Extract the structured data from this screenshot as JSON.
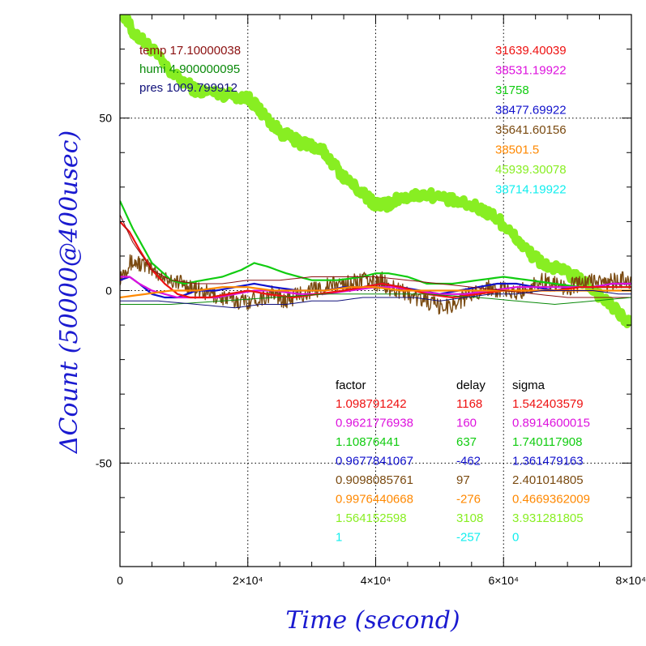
{
  "chart_data": {
    "type": "line",
    "title": "",
    "xlabel": "Time (second)",
    "ylabel": "ΔCount (50000@400usec)",
    "xlim": [
      0,
      80000
    ],
    "ylim": [
      -80,
      80
    ],
    "grid": true,
    "x_ticks": [
      {
        "value": 0,
        "label": "0"
      },
      {
        "value": 20000,
        "label": "2×10⁴"
      },
      {
        "value": 40000,
        "label": "4×10⁴"
      },
      {
        "value": 60000,
        "label": "6×10⁴"
      },
      {
        "value": 80000,
        "label": "8×10⁴"
      }
    ],
    "y_ticks": [
      {
        "value": 50,
        "label": "50"
      },
      {
        "value": 0,
        "label": "0"
      },
      {
        "value": -50,
        "label": "-50"
      }
    ],
    "env_labels": [
      {
        "text": "temp 17.10000038",
        "color": "#8b1010"
      },
      {
        "text": "humi 4.900000095",
        "color": "#0a8a0a"
      },
      {
        "text": "pres 1009.799912",
        "color": "#10107a"
      }
    ],
    "channel_counts": [
      {
        "text": "31639.40039",
        "color": "#ee1111"
      },
      {
        "text": "38531.19922",
        "color": "#dd11dd"
      },
      {
        "text": "31758",
        "color": "#11cc11"
      },
      {
        "text": "38477.69922",
        "color": "#1111cc"
      },
      {
        "text": "35641.60156",
        "color": "#7a4a10"
      },
      {
        "text": "38501.5",
        "color": "#ff8800"
      },
      {
        "text": "45939.30078",
        "color": "#88ee22"
      },
      {
        "text": "38714.19922",
        "color": "#11eeee"
      }
    ],
    "table_headers": [
      "factor",
      "delay",
      "sigma"
    ],
    "table_rows": [
      {
        "factor": "1.098791242",
        "delay": "1168",
        "sigma": "1.542403579",
        "color": "#ee1111"
      },
      {
        "factor": "0.9621776938",
        "delay": "160",
        "sigma": "0.8914600015",
        "color": "#dd11dd"
      },
      {
        "factor": "1.10876441",
        "delay": "637",
        "sigma": "1.740117908",
        "color": "#11cc11"
      },
      {
        "factor": "0.9677841067",
        "delay": "-462",
        "sigma": "1.361479163",
        "color": "#1111cc"
      },
      {
        "factor": "0.9098085761",
        "delay": "97",
        "sigma": "2.401014805",
        "color": "#7a4a10"
      },
      {
        "factor": "0.9976440668",
        "delay": "-276",
        "sigma": "0.4669362009",
        "color": "#ff8800"
      },
      {
        "factor": "1.564152598",
        "delay": "3108",
        "sigma": "3.931281805",
        "color": "#88ee22"
      },
      {
        "factor": "1",
        "delay": "-257",
        "sigma": "0",
        "color": "#11eeee"
      }
    ],
    "series": [
      {
        "color": "#88ee22",
        "width": 9,
        "jitter": 1.5,
        "points": [
          [
            0,
            82
          ],
          [
            2000,
            75
          ],
          [
            5000,
            70
          ],
          [
            8000,
            63
          ],
          [
            12000,
            58
          ],
          [
            16000,
            57
          ],
          [
            20000,
            56
          ],
          [
            22000,
            52
          ],
          [
            25000,
            46
          ],
          [
            28000,
            43
          ],
          [
            30000,
            42
          ],
          [
            32000,
            40
          ],
          [
            35000,
            33
          ],
          [
            38000,
            28
          ],
          [
            40000,
            25
          ],
          [
            42000,
            25
          ],
          [
            44000,
            27
          ],
          [
            48000,
            28
          ],
          [
            52000,
            26
          ],
          [
            56000,
            24
          ],
          [
            59000,
            21
          ],
          [
            61000,
            17
          ],
          [
            64000,
            11
          ],
          [
            66000,
            8
          ],
          [
            70000,
            5
          ],
          [
            73000,
            2
          ],
          [
            76000,
            -3
          ],
          [
            80000,
            -10
          ]
        ]
      },
      {
        "color": "#7a4a10",
        "width": 1.4,
        "jitter": 2.5,
        "points": [
          [
            0,
            4
          ],
          [
            1500,
            8
          ],
          [
            3000,
            8
          ],
          [
            5000,
            6
          ],
          [
            8000,
            3
          ],
          [
            10000,
            2
          ],
          [
            12000,
            0
          ],
          [
            14000,
            -1
          ],
          [
            16000,
            -2
          ],
          [
            18000,
            -3
          ],
          [
            20000,
            -3
          ],
          [
            22000,
            -2
          ],
          [
            24000,
            -1
          ],
          [
            25000,
            -2
          ],
          [
            26000,
            -3
          ],
          [
            28000,
            -1
          ],
          [
            30000,
            0
          ],
          [
            32000,
            1
          ],
          [
            34000,
            2
          ],
          [
            36000,
            2
          ],
          [
            38000,
            3
          ],
          [
            40000,
            2
          ],
          [
            41000,
            3
          ],
          [
            42000,
            1
          ],
          [
            44000,
            0
          ],
          [
            46000,
            -2
          ],
          [
            48000,
            -3
          ],
          [
            50000,
            -5
          ],
          [
            52000,
            -4
          ],
          [
            54000,
            -2
          ],
          [
            56000,
            0
          ],
          [
            58000,
            1
          ],
          [
            60000,
            0
          ],
          [
            62000,
            -1
          ],
          [
            64000,
            1
          ],
          [
            66000,
            3
          ],
          [
            68000,
            2
          ],
          [
            70000,
            1
          ],
          [
            72000,
            2
          ],
          [
            74000,
            3
          ],
          [
            76000,
            2
          ],
          [
            78000,
            3
          ],
          [
            80000,
            3
          ]
        ]
      },
      {
        "color": "#11cc11",
        "width": 2.2,
        "jitter": 0,
        "points": [
          [
            0,
            26
          ],
          [
            2000,
            18
          ],
          [
            5000,
            8
          ],
          [
            8000,
            3
          ],
          [
            10000,
            2
          ],
          [
            13000,
            3
          ],
          [
            16000,
            4
          ],
          [
            19000,
            6
          ],
          [
            21000,
            8
          ],
          [
            23000,
            7
          ],
          [
            26000,
            5
          ],
          [
            30000,
            3
          ],
          [
            34000,
            3
          ],
          [
            38000,
            4
          ],
          [
            40000,
            5
          ],
          [
            42000,
            5
          ],
          [
            45000,
            4
          ],
          [
            48000,
            2
          ],
          [
            52000,
            2
          ],
          [
            56000,
            3
          ],
          [
            60000,
            4
          ],
          [
            64000,
            3
          ],
          [
            68000,
            2
          ],
          [
            72000,
            1
          ],
          [
            76000,
            1
          ],
          [
            80000,
            1
          ]
        ]
      },
      {
        "color": "#1111cc",
        "width": 2.2,
        "jitter": 0,
        "points": [
          [
            0,
            3
          ],
          [
            1500,
            4
          ],
          [
            3000,
            2
          ],
          [
            5000,
            -1
          ],
          [
            7000,
            -2
          ],
          [
            9000,
            -2
          ],
          [
            12000,
            0
          ],
          [
            15000,
            0
          ],
          [
            18000,
            1
          ],
          [
            21000,
            2
          ],
          [
            24000,
            1
          ],
          [
            28000,
            0
          ],
          [
            32000,
            0
          ],
          [
            35000,
            1
          ],
          [
            38000,
            1
          ],
          [
            41000,
            2
          ],
          [
            44000,
            1
          ],
          [
            47000,
            0
          ],
          [
            50000,
            -1
          ],
          [
            53000,
            0
          ],
          [
            56000,
            1
          ],
          [
            59000,
            2
          ],
          [
            62000,
            2
          ],
          [
            65000,
            1
          ],
          [
            68000,
            0
          ],
          [
            71000,
            1
          ],
          [
            74000,
            1
          ],
          [
            77000,
            2
          ],
          [
            80000,
            2
          ]
        ]
      },
      {
        "color": "#dd11dd",
        "width": 2.2,
        "jitter": 0,
        "points": [
          [
            0,
            4
          ],
          [
            1500,
            4
          ],
          [
            3000,
            2
          ],
          [
            5000,
            0
          ],
          [
            7000,
            -1
          ],
          [
            9000,
            -2
          ],
          [
            12000,
            -2
          ],
          [
            15000,
            -2
          ],
          [
            18000,
            -1
          ],
          [
            21000,
            0
          ],
          [
            24000,
            0
          ],
          [
            28000,
            -1
          ],
          [
            32000,
            -1
          ],
          [
            36000,
            0
          ],
          [
            40000,
            1
          ],
          [
            43000,
            1
          ],
          [
            46000,
            0
          ],
          [
            50000,
            -1
          ],
          [
            54000,
            -1
          ],
          [
            58000,
            0
          ],
          [
            62000,
            1
          ],
          [
            66000,
            1
          ],
          [
            70000,
            1
          ],
          [
            74000,
            1
          ],
          [
            77000,
            2
          ],
          [
            80000,
            2
          ]
        ]
      },
      {
        "color": "#ee1111",
        "width": 2.2,
        "jitter": 0,
        "points": [
          [
            0,
            20
          ],
          [
            1500,
            17
          ],
          [
            3000,
            12
          ],
          [
            5000,
            6
          ],
          [
            7000,
            2
          ],
          [
            9000,
            -1
          ],
          [
            11000,
            -2
          ],
          [
            14000,
            -2
          ],
          [
            17000,
            -1
          ],
          [
            20000,
            0
          ],
          [
            23000,
            -1
          ],
          [
            27000,
            -2
          ],
          [
            31000,
            -1
          ],
          [
            35000,
            0
          ],
          [
            38000,
            1
          ],
          [
            41000,
            2
          ],
          [
            44000,
            1
          ],
          [
            48000,
            -1
          ],
          [
            52000,
            -2
          ],
          [
            56000,
            -1
          ],
          [
            60000,
            0
          ],
          [
            64000,
            0
          ],
          [
            68000,
            0
          ],
          [
            72000,
            1
          ],
          [
            76000,
            1
          ],
          [
            80000,
            1
          ]
        ]
      },
      {
        "color": "#ff8800",
        "width": 2.2,
        "jitter": 0,
        "points": [
          [
            0,
            -2
          ],
          [
            4000,
            -1
          ],
          [
            8000,
            0
          ],
          [
            12000,
            0
          ],
          [
            16000,
            1
          ],
          [
            20000,
            1
          ],
          [
            24000,
            0
          ],
          [
            28000,
            0
          ],
          [
            32000,
            0
          ],
          [
            36000,
            1
          ],
          [
            40000,
            1
          ],
          [
            44000,
            0
          ],
          [
            48000,
            0
          ],
          [
            52000,
            0
          ],
          [
            56000,
            0
          ],
          [
            60000,
            0
          ],
          [
            64000,
            0
          ],
          [
            68000,
            0
          ],
          [
            72000,
            0
          ],
          [
            76000,
            0
          ],
          [
            80000,
            0
          ]
        ]
      },
      {
        "color": "#8b1010",
        "width": 1,
        "jitter": 0,
        "points": [
          [
            0,
            22
          ],
          [
            2000,
            14
          ],
          [
            5000,
            6
          ],
          [
            8000,
            3
          ],
          [
            12000,
            2
          ],
          [
            16000,
            2
          ],
          [
            20000,
            3
          ],
          [
            25000,
            3
          ],
          [
            30000,
            4
          ],
          [
            35000,
            4
          ],
          [
            40000,
            4
          ],
          [
            45000,
            3
          ],
          [
            50000,
            2
          ],
          [
            55000,
            1
          ],
          [
            60000,
            0
          ],
          [
            65000,
            -1
          ],
          [
            70000,
            -2
          ],
          [
            75000,
            -2
          ],
          [
            80000,
            -2
          ]
        ]
      },
      {
        "color": "#0a8a0a",
        "width": 1,
        "jitter": 0,
        "points": [
          [
            0,
            -4
          ],
          [
            8000,
            -4
          ],
          [
            16000,
            -3
          ],
          [
            24000,
            -2
          ],
          [
            32000,
            -1
          ],
          [
            40000,
            -1
          ],
          [
            48000,
            -1
          ],
          [
            56000,
            -2
          ],
          [
            62000,
            -3
          ],
          [
            68000,
            -4
          ],
          [
            74000,
            -3
          ],
          [
            80000,
            -2
          ]
        ]
      },
      {
        "color": "#10107a",
        "width": 1,
        "jitter": 0,
        "points": [
          [
            0,
            -3
          ],
          [
            6000,
            -3
          ],
          [
            12000,
            -4
          ],
          [
            18000,
            -5
          ],
          [
            22000,
            -4
          ],
          [
            26000,
            -4
          ],
          [
            30000,
            -3
          ],
          [
            34000,
            -3
          ],
          [
            38000,
            -2
          ],
          [
            42000,
            -2
          ],
          [
            46000,
            -2
          ],
          [
            50000,
            -3
          ],
          [
            54000,
            -2
          ],
          [
            58000,
            -1
          ],
          [
            62000,
            -1
          ],
          [
            66000,
            0
          ],
          [
            70000,
            0
          ],
          [
            74000,
            0
          ],
          [
            78000,
            -1
          ],
          [
            80000,
            -1
          ]
        ]
      }
    ]
  }
}
